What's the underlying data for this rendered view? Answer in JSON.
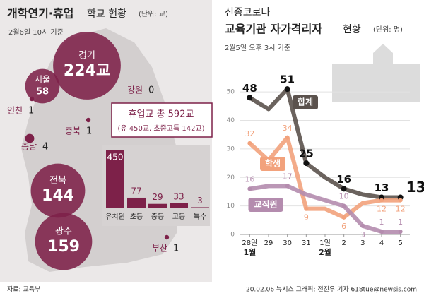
{
  "left_header": {
    "title": "개학연기·휴업",
    "title_rest": "학교 현황",
    "unit": "(단위: 교)",
    "note": "2월6일 10시 기준"
  },
  "callout": {
    "main": "휴업교 총 592교",
    "sub": "(유 450교, 초중고특 142교)"
  },
  "right_header": {
    "kicker": "신종코로나",
    "title": "교육기관 자가격리자",
    "title_rest": "현황",
    "unit": "(단위: 명)",
    "note": "2월5일 오후 3시 기준"
  },
  "footer": {
    "source": "자료: 교육부",
    "credit": "20.02.06 뉴시스 그래픽: 전진우 기자 618tue@newsis.com"
  },
  "chart_data": [
    {
      "type": "bubble",
      "categories": [
        "경기",
        "서울",
        "인천",
        "강원",
        "충북",
        "충남",
        "전북",
        "광주",
        "부산"
      ],
      "values": [
        224,
        58,
        1,
        0,
        1,
        4,
        144,
        159,
        1
      ],
      "value_labels": [
        "224교",
        "58",
        "1",
        "0",
        "1",
        "4",
        "144",
        "159",
        "1"
      ],
      "color": "#7d2149"
    },
    {
      "type": "bar",
      "categories": [
        "유치원",
        "초등",
        "중등",
        "고등",
        "특수"
      ],
      "values": [
        450,
        77,
        29,
        33,
        3
      ],
      "color": "#7d2149"
    },
    {
      "type": "line",
      "categories": [
        "28일",
        "29",
        "30",
        "31",
        "1일",
        "2",
        "3",
        "4",
        "5"
      ],
      "month_labels": [
        "1월",
        "2월"
      ],
      "ylim": [
        0,
        55
      ],
      "yticks": [
        0,
        10,
        20,
        30,
        40,
        50
      ],
      "series": [
        {
          "name": "합계",
          "color": "#5b524d",
          "values": [
            48,
            44,
            51,
            25,
            20,
            16,
            14,
            13,
            13
          ],
          "value_labels": [
            "48",
            null,
            "51",
            "25",
            null,
            "16",
            null,
            "13",
            "13명"
          ]
        },
        {
          "name": "학생",
          "color": "#f2a27c",
          "values": [
            32,
            26,
            34,
            9,
            9,
            6,
            11,
            12,
            12
          ],
          "value_labels": [
            "32",
            null,
            "34",
            "9",
            null,
            "6",
            null,
            "12",
            "12"
          ]
        },
        {
          "name": "교직원",
          "color": "#b48cae",
          "values": [
            16,
            17,
            17,
            14,
            12,
            10,
            3,
            1,
            1
          ],
          "value_labels": [
            "16",
            null,
            "17",
            null,
            null,
            "10",
            "3",
            "1",
            "1"
          ]
        }
      ]
    }
  ]
}
